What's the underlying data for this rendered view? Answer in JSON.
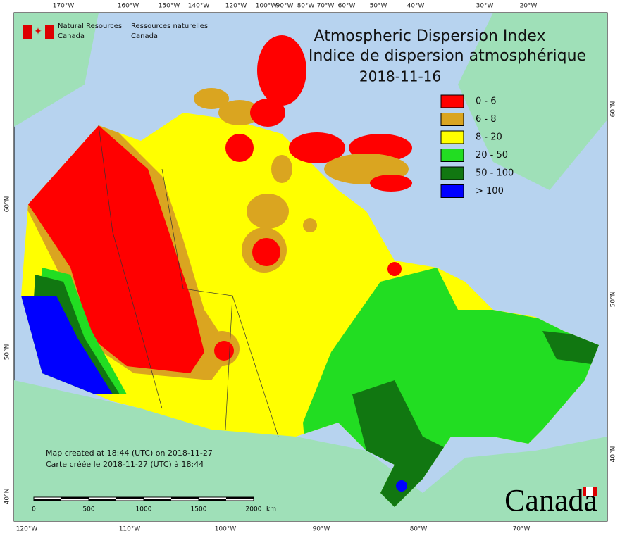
{
  "agency": {
    "en_line1": "Natural Resources",
    "en_line2": "Canada",
    "fr_line1": "Ressources naturelles",
    "fr_line2": "Canada"
  },
  "title": {
    "en": "Atmospheric Dispersion Index",
    "fr": "Indice de dispersion atmosphérique",
    "date": "2018-11-16"
  },
  "legend": [
    {
      "label": "0 - 6",
      "color": "#ff0000"
    },
    {
      "label": "6 - 8",
      "color": "#daa520"
    },
    {
      "label": "8 - 20",
      "color": "#ffff00"
    },
    {
      "label": "20 - 50",
      "color": "#22dd22"
    },
    {
      "label": "50 - 100",
      "color": "#117711"
    },
    {
      "label": "> 100",
      "color": "#0000ff"
    }
  ],
  "graticule": {
    "top": [
      "170°W",
      "160°W",
      "150°W",
      "140°W",
      "120°W",
      "100°W",
      "90°W",
      "80°W",
      "70°W",
      "60°W",
      "50°W",
      "40°W",
      "30°W",
      "20°W"
    ],
    "bottom": [
      "120°W",
      "110°W",
      "100°W",
      "90°W",
      "80°W",
      "70°W"
    ],
    "left": [
      "60°N",
      "50°N",
      "40°N"
    ],
    "right": [
      "60°N",
      "50°N",
      "40°N"
    ]
  },
  "notes": [
    "Map created at 18:44 (UTC) on 2018-11-27",
    "Carte créée le 2018-11-27 (UTC) à 18:44"
  ],
  "scale_bar": {
    "labels": [
      "0",
      "500",
      "1000",
      "1500",
      "2000"
    ],
    "unit": "km"
  },
  "wordmark": "Canada"
}
